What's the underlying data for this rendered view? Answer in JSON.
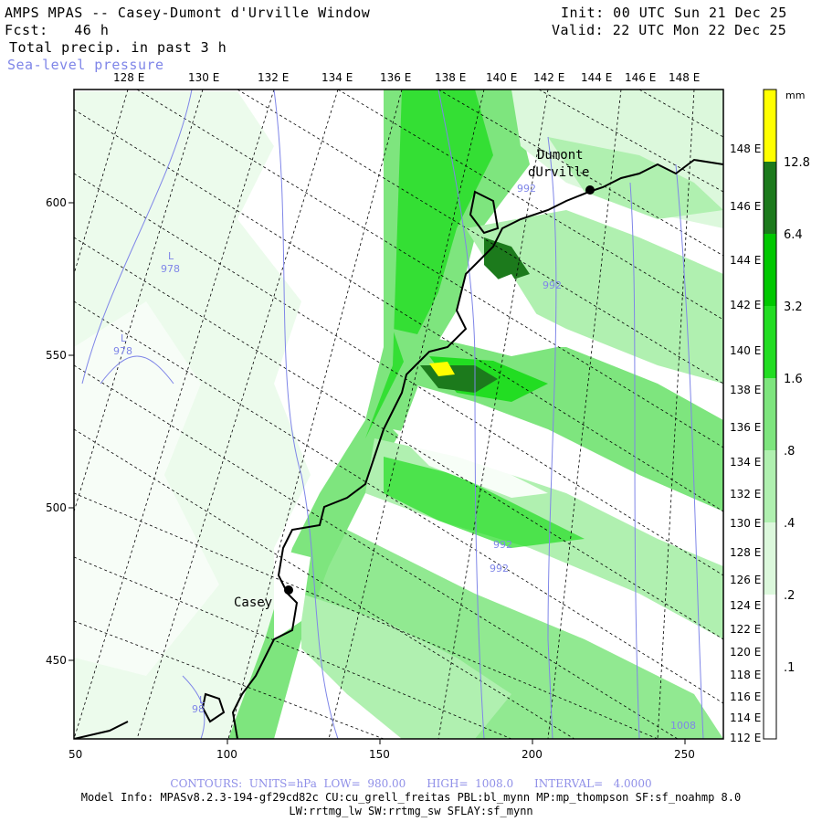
{
  "header": {
    "title": "AMPS MPAS -- Casey-Dumont d'Urville Window",
    "forecast": "Fcst:   46 h",
    "field": "Total precip. in past 3 h",
    "overlay": "Sea-level pressure",
    "init": "Init: 00 UTC Sun 21 Dec 25",
    "valid": "Valid: 22 UTC Mon 22 Dec 25"
  },
  "top_axis_labels": [
    "128 E",
    "130 E",
    "132 E",
    "134 E",
    "136 E",
    "138 E",
    "140 E",
    "142 E",
    "144 E",
    "146 E",
    "148 E"
  ],
  "right_axis_labels": [
    "148 E",
    "146 E",
    "144 E",
    "142 E",
    "140 E",
    "138 E",
    "136 E",
    "134 E",
    "132 E",
    "130 E",
    "128 E",
    "126 E",
    "124 E",
    "122 E",
    "120 E",
    "118 E",
    "116 E",
    "114 E",
    "112 E"
  ],
  "left_axis_labels": [
    "600",
    "550",
    "500",
    "450"
  ],
  "bottom_axis_labels": [
    "50",
    "100",
    "150",
    "200",
    "250"
  ],
  "stations": [
    {
      "name_line1": "Dumont",
      "name_line2": "dUrville"
    },
    {
      "name_line1": "Casey",
      "name_line2": ""
    }
  ],
  "pressure_labels": [
    "L",
    "978",
    "L",
    "978",
    "992",
    "992",
    "992",
    "992",
    "L",
    "98",
    "1008"
  ],
  "colorbar": {
    "unit": "mm",
    "levels": [
      "12.8",
      "6.4",
      "3.2",
      "1.6",
      ".8",
      ".4",
      ".2",
      ".1"
    ],
    "colors": [
      "#ffff00",
      "#1c7a1c",
      "#00c800",
      "#22dd22",
      "#7ee57e",
      "#b0f0b0",
      "#dcf8dc",
      "#ffffff"
    ]
  },
  "footer": {
    "contours": "CONTOURS:  UNITS=hPa  LOW=  980.00      HIGH=  1008.0      INTERVAL=   4.0000",
    "model_info": "Model Info: MPASv8.2.3-194-gf29cd82c CU:cu_grell_freitas PBL:bl_mynn MP:mp_thompson SF:sf_noahmp 8.0",
    "physics": "LW:rrtmg_lw SW:rrtmg_sw SFLAY:sf_mynn"
  }
}
